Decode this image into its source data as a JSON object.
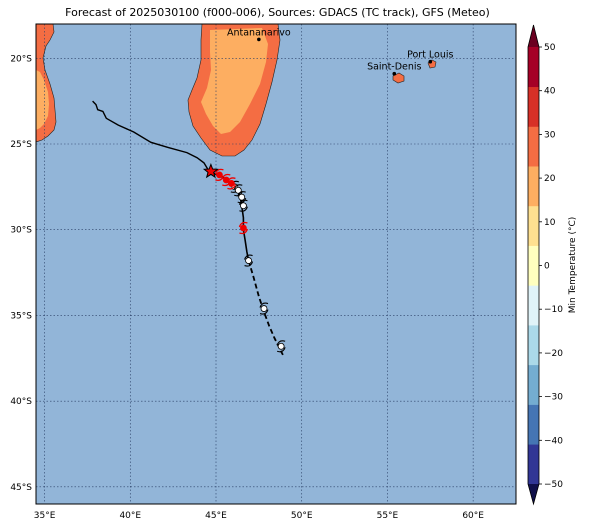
{
  "title": "Forecast of 2025030100 (f000-006), Sources: GDACS (TC track), GFS (Meteo)",
  "map": {
    "lon_range": [
      34.5,
      62.5
    ],
    "lat_range": [
      -46.0,
      -18.0
    ],
    "lon_ticks": [
      35,
      40,
      45,
      50,
      55,
      60
    ],
    "lat_ticks": [
      -20,
      -25,
      -30,
      -35,
      -40,
      -45
    ],
    "lon_tick_labels": [
      "35°E",
      "40°E",
      "45°E",
      "50°E",
      "55°E",
      "60°E"
    ],
    "lat_tick_labels": [
      "20°S",
      "25°S",
      "30°S",
      "35°S",
      "40°S",
      "45°S"
    ],
    "ocean_color": "#92b5d8",
    "gridlines": true
  },
  "cities": [
    {
      "name": "Antananarivo",
      "lon": 47.5,
      "lat": -18.9
    },
    {
      "name": "Port Louis",
      "lon": 57.5,
      "lat": -20.2
    },
    {
      "name": "Saint-Denis",
      "lon": 55.4,
      "lat": -20.9
    }
  ],
  "track": {
    "past": [
      [
        37.8,
        -22.5
      ],
      [
        38.0,
        -22.7
      ],
      [
        38.1,
        -23.0
      ],
      [
        38.4,
        -23.1
      ],
      [
        38.6,
        -23.5
      ],
      [
        39.3,
        -23.9
      ],
      [
        40.2,
        -24.3
      ],
      [
        41.2,
        -24.9
      ],
      [
        42.2,
        -25.2
      ],
      [
        43.3,
        -25.5
      ],
      [
        43.9,
        -25.8
      ],
      [
        44.3,
        -26.1
      ],
      [
        44.6,
        -26.6
      ]
    ],
    "forecast_solid": [
      [
        44.6,
        -26.6
      ],
      [
        45.1,
        -26.8
      ],
      [
        45.5,
        -27.0
      ],
      [
        45.9,
        -27.3
      ],
      [
        46.2,
        -27.6
      ],
      [
        46.4,
        -28.0
      ],
      [
        46.5,
        -28.6
      ],
      [
        46.6,
        -29.3
      ],
      [
        46.6,
        -30.0
      ],
      [
        46.7,
        -30.6
      ],
      [
        46.8,
        -31.3
      ],
      [
        46.9,
        -31.8
      ]
    ],
    "forecast_dashed": [
      [
        46.9,
        -31.8
      ],
      [
        47.2,
        -32.8
      ],
      [
        47.5,
        -33.9
      ],
      [
        47.8,
        -34.8
      ],
      [
        48.1,
        -35.6
      ],
      [
        48.4,
        -36.3
      ],
      [
        48.7,
        -36.9
      ],
      [
        48.9,
        -37.3
      ]
    ],
    "current_position": [
      44.7,
      -26.6
    ],
    "red_symbols": [
      [
        45.2,
        -26.8
      ],
      [
        45.6,
        -27.1
      ],
      [
        45.9,
        -27.3
      ],
      [
        46.6,
        -29.9
      ]
    ],
    "white_symbols": [
      [
        46.1,
        -27.5
      ],
      [
        46.3,
        -27.7
      ],
      [
        46.5,
        -28.1
      ],
      [
        46.6,
        -28.6
      ],
      [
        46.9,
        -31.8
      ],
      [
        47.8,
        -34.6
      ],
      [
        48.8,
        -36.8
      ]
    ]
  },
  "colorbar": {
    "label": "Min Temperature (°C)",
    "min": -50,
    "max": 50,
    "step": 10,
    "tick_labels": [
      "50",
      "40",
      "30",
      "20",
      "10",
      "0",
      "−10",
      "−20",
      "−30",
      "−40",
      "−50"
    ],
    "colors": [
      "#313695",
      "#4575b4",
      "#74add1",
      "#abd9e9",
      "#e0f3f8",
      "#ffffbf",
      "#fee090",
      "#fdae61",
      "#f46d43",
      "#d73027",
      "#a50026"
    ],
    "under_color": "#10104a",
    "over_color": "#6a0020"
  },
  "land_colors": {
    "temp_25": "#f46d43",
    "temp_15": "#fdae61"
  }
}
